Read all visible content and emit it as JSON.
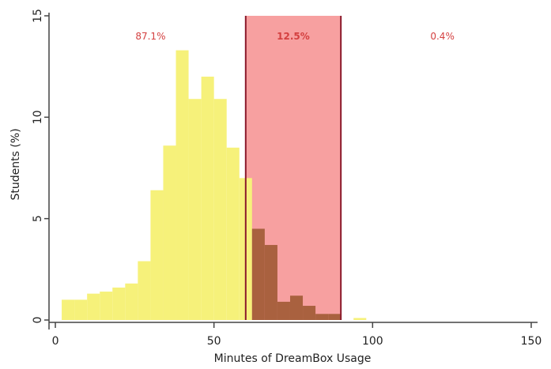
{
  "chart_data": {
    "type": "bar",
    "xlabel": "Minutes of DreamBox Usage",
    "ylabel": "Students (%)",
    "xlim": [
      -2,
      152
    ],
    "ylim": [
      0,
      15
    ],
    "xticks": [
      {
        "value": 0,
        "label": "0"
      },
      {
        "value": 50,
        "label": "50"
      },
      {
        "value": 100,
        "label": "100"
      },
      {
        "value": 150,
        "label": "150"
      }
    ],
    "yticks": [
      {
        "value": 0,
        "label": "0"
      },
      {
        "value": 5,
        "label": "5"
      },
      {
        "value": 10,
        "label": "10"
      },
      {
        "value": 15,
        "label": "15"
      }
    ],
    "bin_width": 4,
    "bins": [
      {
        "x0": 2,
        "value": 1.0
      },
      {
        "x0": 6,
        "value": 1.0
      },
      {
        "x0": 10,
        "value": 1.3
      },
      {
        "x0": 14,
        "value": 1.4
      },
      {
        "x0": 18,
        "value": 1.6
      },
      {
        "x0": 22,
        "value": 1.8
      },
      {
        "x0": 26,
        "value": 2.9
      },
      {
        "x0": 30,
        "value": 6.4
      },
      {
        "x0": 34,
        "value": 8.6
      },
      {
        "x0": 38,
        "value": 13.3
      },
      {
        "x0": 42,
        "value": 10.9
      },
      {
        "x0": 46,
        "value": 12.0
      },
      {
        "x0": 50,
        "value": 10.9
      },
      {
        "x0": 54,
        "value": 8.5
      },
      {
        "x0": 58,
        "value": 7.0
      },
      {
        "x0": 62,
        "value": 4.5
      },
      {
        "x0": 66,
        "value": 3.7
      },
      {
        "x0": 70,
        "value": 0.9
      },
      {
        "x0": 74,
        "value": 1.2
      },
      {
        "x0": 78,
        "value": 0.7
      },
      {
        "x0": 82,
        "value": 0.3
      },
      {
        "x0": 86,
        "value": 0.3
      },
      {
        "x0": 94,
        "value": 0.1
      }
    ],
    "highlight_range": [
      60,
      90
    ],
    "region_labels": [
      {
        "text": "87.1%",
        "x": 30
      },
      {
        "text": "12.5%",
        "x": 75
      },
      {
        "text": "0.4%",
        "x": 122
      }
    ],
    "colors": {
      "bar": "#f6f17a",
      "band": "#f7a0a0",
      "band_line": "#8b1a2b",
      "bar_in_band": "#a9613f",
      "label_text": "#d44040"
    }
  }
}
